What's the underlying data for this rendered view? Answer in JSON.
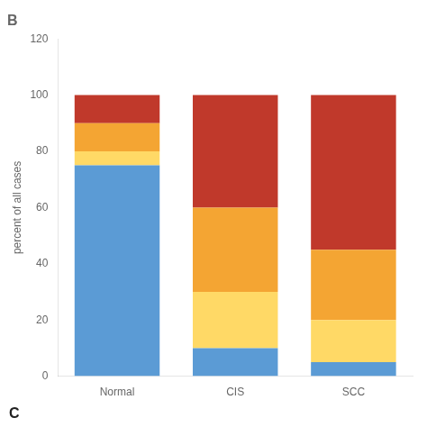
{
  "chart_data": {
    "type": "bar",
    "title": "B",
    "ylabel": "percent of all cases",
    "categories": [
      "Normal",
      "CIS",
      "SCC"
    ],
    "series": [
      {
        "color": "#5b9bd5",
        "values": [
          75,
          10,
          5
        ]
      },
      {
        "color": "#ffd966",
        "values": [
          5,
          20,
          15
        ]
      },
      {
        "color": "#f4a533",
        "values": [
          10,
          30,
          25
        ]
      },
      {
        "color": "#c0392b",
        "values": [
          10,
          40,
          55
        ]
      }
    ],
    "stacked": true,
    "ylim": [
      0,
      120
    ],
    "yticks": [
      0,
      20,
      40,
      60,
      80,
      100,
      120
    ],
    "grid": false,
    "annotations": [
      "C"
    ]
  }
}
